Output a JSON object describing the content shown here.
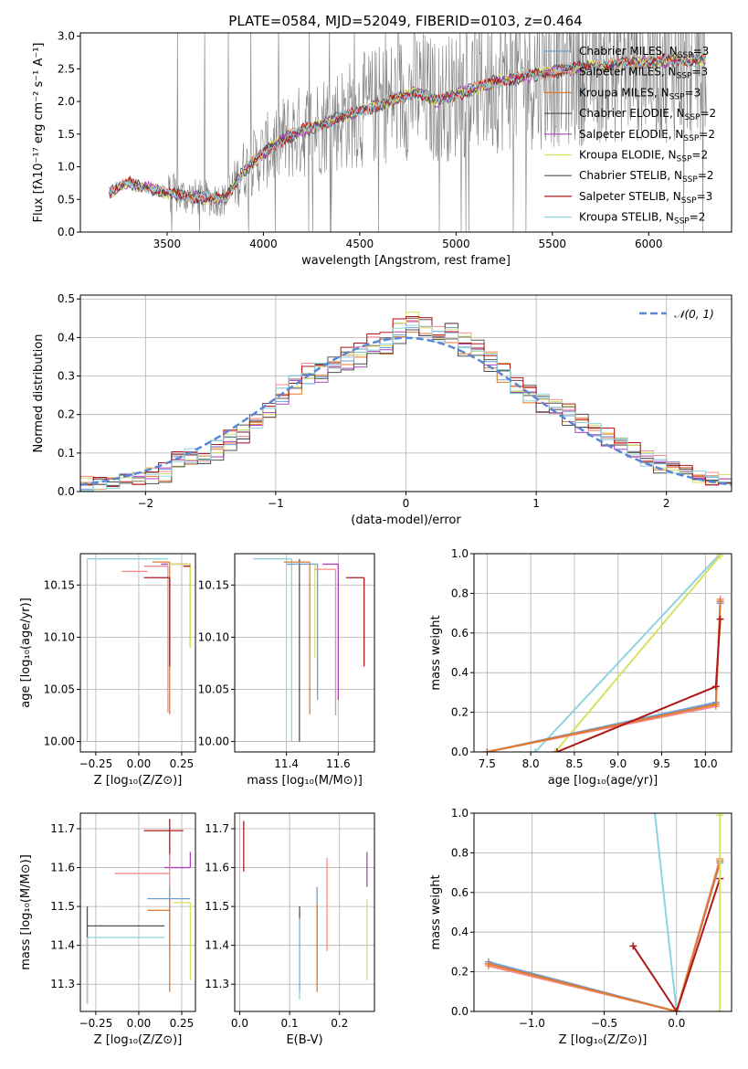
{
  "title": "PLATE=0584, MJD=52049, FIBERID=0103, z=0.464",
  "colors": {
    "chabrier_miles": "#6a9fd8",
    "salpeter_miles": "#f58a8a",
    "kroupa_miles": "#e07a2a",
    "chabrier_elodie": "#555555",
    "salpeter_elodie": "#b040c0",
    "kroupa_elodie": "#d8e060",
    "chabrier_stelib": "#505050",
    "salpeter_stelib": "#b01818",
    "kroupa_stelib": "#8fd3e0",
    "gaussian": "#5b86d6",
    "data": "#808080"
  },
  "legend": {
    "entries": [
      {
        "text": "Chabrier MILES, N",
        "sub": "SSP",
        "tail": "=3",
        "color_key": "chabrier_miles"
      },
      {
        "text": "Salpeter MILES, N",
        "sub": "SSP",
        "tail": "=3",
        "color_key": "salpeter_miles"
      },
      {
        "text": "Kroupa MILES, N",
        "sub": "SSP",
        "tail": "=3",
        "color_key": "kroupa_miles"
      },
      {
        "text": "Chabrier ELODIE, N",
        "sub": "SSP",
        "tail": "=2",
        "color_key": "chabrier_elodie"
      },
      {
        "text": "Salpeter ELODIE, N",
        "sub": "SSP",
        "tail": "=2",
        "color_key": "salpeter_elodie"
      },
      {
        "text": "Kroupa ELODIE, N",
        "sub": "SSP",
        "tail": "=2",
        "color_key": "kroupa_elodie"
      },
      {
        "text": "Chabrier STELIB, N",
        "sub": "SSP",
        "tail": "=2",
        "color_key": "chabrier_stelib"
      },
      {
        "text": "Salpeter STELIB, N",
        "sub": "SSP",
        "tail": "=3",
        "color_key": "salpeter_stelib"
      },
      {
        "text": "Kroupa STELIB, N",
        "sub": "SSP",
        "tail": "=2",
        "color_key": "kroupa_stelib"
      }
    ],
    "gaussian_label": "𝒩(0, 1)"
  },
  "chart_data": [
    {
      "id": "spectrum",
      "type": "line",
      "xlabel": "wavelength [Angstrom, rest frame]",
      "ylabel": "Flux [fλ10⁻¹⁷ erg cm⁻² s⁻¹ A⁻¹]",
      "xlim": [
        3050,
        6430
      ],
      "ylim": [
        0,
        3.05
      ],
      "xticks": [
        "3500",
        "4000",
        "4500",
        "5000",
        "5500",
        "6000"
      ],
      "xtick_values": [
        3500,
        4000,
        4500,
        5000,
        5500,
        6000
      ],
      "yticks": [
        "0.0",
        "0.5",
        "1.0",
        "1.5",
        "2.0",
        "2.5",
        "3.0"
      ],
      "ytick_values": [
        0,
        0.5,
        1.0,
        1.5,
        2.0,
        2.5,
        3.0
      ],
      "data_range": [
        3200,
        6300
      ],
      "model_anchor_x": [
        3200,
        3300,
        3400,
        3500,
        3600,
        3700,
        3800,
        3900,
        4000,
        4100,
        4200,
        4300,
        4400,
        4500,
        4600,
        4700,
        4800,
        4900,
        5000,
        5100,
        5200,
        5300,
        5400,
        5500,
        5600,
        5700,
        5800,
        5900,
        6000,
        6100,
        6200,
        6300
      ],
      "model_anchor_y": [
        0.6,
        0.75,
        0.68,
        0.6,
        0.55,
        0.52,
        0.5,
        0.95,
        1.2,
        1.42,
        1.55,
        1.65,
        1.75,
        1.85,
        1.95,
        2.05,
        2.15,
        2.0,
        2.1,
        2.2,
        2.3,
        2.35,
        2.4,
        2.45,
        2.5,
        2.55,
        2.55,
        2.6,
        2.6,
        2.62,
        2.63,
        2.65
      ]
    },
    {
      "id": "residuals",
      "type": "histogram",
      "xlabel": "(data-model)/error",
      "ylabel": "Normed distribution",
      "xlim": [
        -2.5,
        2.5
      ],
      "ylim": [
        0,
        0.51
      ],
      "xticks": [
        "−2",
        "−1",
        "0",
        "1",
        "2"
      ],
      "xtick_values": [
        -2,
        -1,
        0,
        1,
        2
      ],
      "yticks": [
        "0.0",
        "0.1",
        "0.2",
        "0.3",
        "0.4",
        "0.5"
      ],
      "ytick_values": [
        0,
        0.1,
        0.2,
        0.3,
        0.4,
        0.5
      ],
      "bin_centers": [
        -2.45,
        -2.35,
        -2.25,
        -2.15,
        -2.05,
        -1.95,
        -1.85,
        -1.75,
        -1.65,
        -1.55,
        -1.45,
        -1.35,
        -1.25,
        -1.15,
        -1.05,
        -0.95,
        -0.85,
        -0.75,
        -0.65,
        -0.55,
        -0.45,
        -0.35,
        -0.25,
        -0.15,
        -0.05,
        0.05,
        0.15,
        0.25,
        0.35,
        0.45,
        0.55,
        0.65,
        0.75,
        0.85,
        0.95,
        1.05,
        1.15,
        1.25,
        1.35,
        1.45,
        1.55,
        1.65,
        1.75,
        1.85,
        1.95,
        2.05,
        2.15,
        2.25,
        2.35,
        2.45
      ],
      "envelope": [
        0.02,
        0.02,
        0.02,
        0.03,
        0.03,
        0.04,
        0.05,
        0.08,
        0.09,
        0.09,
        0.11,
        0.13,
        0.15,
        0.18,
        0.21,
        0.25,
        0.28,
        0.3,
        0.31,
        0.32,
        0.34,
        0.35,
        0.38,
        0.37,
        0.42,
        0.44,
        0.42,
        0.4,
        0.41,
        0.38,
        0.37,
        0.34,
        0.31,
        0.27,
        0.25,
        0.23,
        0.22,
        0.2,
        0.18,
        0.16,
        0.14,
        0.13,
        0.1,
        0.08,
        0.07,
        0.06,
        0.05,
        0.04,
        0.03,
        0.03
      ],
      "series_offsets": [
        0.0,
        0.02,
        -0.01,
        0.015,
        -0.015,
        0.01,
        -0.02,
        0.025,
        0.005
      ]
    },
    {
      "id": "age_vs_Z",
      "type": "errorbar",
      "xlabel": "Z [log₁₀(Z/Z⊙)]",
      "ylabel": "age  [log₁₀(age/yr)]",
      "xlim": [
        -0.34,
        0.33
      ],
      "ylim": [
        9.99,
        10.18
      ],
      "xticks": [
        "−0.25",
        "0.00",
        "0.25"
      ],
      "xtick_values": [
        -0.25,
        0,
        0.25
      ],
      "yticks": [
        "10.00",
        "10.05",
        "10.10",
        "10.15"
      ],
      "ytick_values": [
        10.0,
        10.05,
        10.1,
        10.15
      ],
      "points": [
        {
          "x": -0.3,
          "y": 10.175,
          "xerr": [
            0.0,
            0.47
          ],
          "yerr": [
            0.175,
            0.0
          ],
          "color_key": "kroupa_stelib"
        },
        {
          "x": 0.17,
          "y": 10.168,
          "xerr": [
            0.14,
            0.0
          ],
          "yerr": [
            0.14,
            0.0
          ],
          "color_key": "salpeter_miles"
        },
        {
          "x": 0.3,
          "y": 10.17,
          "xerr": [
            0.17,
            0.0
          ],
          "yerr": [
            0.08,
            0.0
          ],
          "color_key": "salpeter_elodie"
        },
        {
          "x": 0.18,
          "y": 10.172,
          "xerr": [
            0.1,
            0.0
          ],
          "yerr": [
            0.146,
            0.0
          ],
          "color_key": "kroupa_miles"
        },
        {
          "x": 0.3,
          "y": 10.17,
          "xerr": [
            0.13,
            0.0
          ],
          "yerr": [
            0.08,
            0.0
          ],
          "color_key": "kroupa_elodie"
        },
        {
          "x": 0.18,
          "y": 10.157,
          "xerr": [
            0.15,
            0.0
          ],
          "yerr": [
            0.085,
            0.0
          ],
          "color_key": "salpeter_stelib"
        },
        {
          "x": 0.26,
          "y": 10.168,
          "xerr": [
            0.0,
            0.04
          ],
          "yerr": [
            0.0,
            0.0
          ],
          "color_key": "salpeter_stelib"
        },
        {
          "x": 0.05,
          "y": 10.163,
          "xerr": [
            0.15,
            0.0
          ],
          "yerr": [
            0.0,
            0.0
          ],
          "color_key": "salpeter_miles"
        }
      ]
    },
    {
      "id": "age_vs_mass",
      "type": "errorbar",
      "xlabel": "mass [log₁₀(M/M⊙)]",
      "ylabel": "",
      "xlim": [
        11.2,
        11.74
      ],
      "ylim": [
        9.99,
        10.18
      ],
      "xticks": [
        "11.4",
        "11.6"
      ],
      "xtick_values": [
        11.4,
        11.6
      ],
      "yticks": [
        "10.00",
        "10.05",
        "10.10",
        "10.15"
      ],
      "ytick_values": [
        10.0,
        10.05,
        10.1,
        10.15
      ],
      "points": [
        {
          "x": 11.42,
          "y": 10.175,
          "xerr": [
            0.15,
            0.0
          ],
          "yerr": [
            0.175,
            0.0
          ],
          "color_key": "kroupa_stelib"
        },
        {
          "x": 11.45,
          "y": 10.175,
          "xerr": [
            0.0,
            0.0
          ],
          "yerr": [
            0.175,
            0.0
          ],
          "color_key": "chabrier_stelib"
        },
        {
          "x": 11.49,
          "y": 10.172,
          "xerr": [
            0.1,
            0.0
          ],
          "yerr": [
            0.146,
            0.0
          ],
          "color_key": "kroupa_miles"
        },
        {
          "x": 11.52,
          "y": 10.17,
          "xerr": [
            0.12,
            0.0
          ],
          "yerr": [
            0.13,
            0.0
          ],
          "color_key": "chabrier_miles"
        },
        {
          "x": 11.51,
          "y": 10.17,
          "xerr": [
            0.0,
            0.0
          ],
          "yerr": [
            0.09,
            0.0
          ],
          "color_key": "kroupa_elodie"
        },
        {
          "x": 11.59,
          "y": 10.165,
          "xerr": [
            0.08,
            0.0
          ],
          "yerr": [
            0.14,
            0.0
          ],
          "color_key": "salpeter_miles"
        },
        {
          "x": 11.6,
          "y": 10.17,
          "xerr": [
            0.06,
            0.0
          ],
          "yerr": [
            0.13,
            0.0
          ],
          "color_key": "salpeter_elodie"
        },
        {
          "x": 11.7,
          "y": 10.157,
          "xerr": [
            0.07,
            0.0
          ],
          "yerr": [
            0.085,
            0.0
          ],
          "color_key": "salpeter_stelib"
        }
      ]
    },
    {
      "id": "weight_vs_age",
      "type": "line",
      "xlabel": "age  [log₁₀(age/yr)]",
      "ylabel": "mass weight",
      "xlim": [
        7.35,
        10.3
      ],
      "ylim": [
        0,
        1.0
      ],
      "xticks": [
        "7.5",
        "8.0",
        "8.5",
        "9.0",
        "9.5",
        "10.0"
      ],
      "xtick_values": [
        7.5,
        8.0,
        8.5,
        9.0,
        9.5,
        10.0
      ],
      "yticks": [
        "0.0",
        "0.2",
        "0.4",
        "0.6",
        "0.8",
        "1.0"
      ],
      "ytick_values": [
        0,
        0.2,
        0.4,
        0.6,
        0.8,
        1.0
      ],
      "series": [
        {
          "color_key": "kroupa_stelib",
          "x": [
            8.05,
            10.17
          ],
          "y": [
            0.0,
            1.0
          ]
        },
        {
          "color_key": "kroupa_elodie",
          "x": [
            8.28,
            10.17
          ],
          "y": [
            0.0,
            0.99
          ]
        },
        {
          "color_key": "chabrier_miles",
          "x": [
            7.5,
            10.12,
            10.17
          ],
          "y": [
            0.0,
            0.25,
            0.75
          ]
        },
        {
          "color_key": "salpeter_miles",
          "x": [
            7.5,
            10.12,
            10.17
          ],
          "y": [
            0.0,
            0.23,
            0.77
          ]
        },
        {
          "color_key": "kroupa_miles",
          "x": [
            7.5,
            10.12,
            10.17
          ],
          "y": [
            0.0,
            0.24,
            0.76
          ]
        },
        {
          "color_key": "salpeter_stelib",
          "x": [
            8.3,
            10.12,
            10.17
          ],
          "y": [
            0.0,
            0.33,
            0.67
          ]
        }
      ]
    },
    {
      "id": "mass_vs_Z",
      "type": "errorbar",
      "xlabel": "Z [log₁₀(Z/Z⊙)]",
      "ylabel": "mass [log₁₀(M/M⊙)]",
      "xlim": [
        -0.34,
        0.33
      ],
      "ylim": [
        11.23,
        11.74
      ],
      "xticks": [
        "−0.25",
        "0.00",
        "0.25"
      ],
      "xtick_values": [
        -0.25,
        0,
        0.25
      ],
      "yticks": [
        "11.3",
        "11.4",
        "11.5",
        "11.6",
        "11.7"
      ],
      "ytick_values": [
        11.3,
        11.4,
        11.5,
        11.6,
        11.7
      ],
      "points": [
        {
          "x": -0.3,
          "y": 11.45,
          "xerr": [
            0.0,
            0.45
          ],
          "yerr": [
            0.2,
            0.05
          ],
          "color_key": "chabrier_stelib"
        },
        {
          "x": -0.3,
          "y": 11.42,
          "xerr": [
            0.0,
            0.45
          ],
          "yerr": [
            0.17,
            0.0
          ],
          "color_key": "kroupa_stelib"
        },
        {
          "x": 0.18,
          "y": 11.695,
          "xerr": [
            0.15,
            0.08
          ],
          "yerr": [
            0.1,
            0.03
          ],
          "color_key": "salpeter_stelib"
        },
        {
          "x": 0.3,
          "y": 11.6,
          "xerr": [
            0.15,
            0.0
          ],
          "yerr": [
            0.0,
            0.04
          ],
          "color_key": "salpeter_elodie"
        },
        {
          "x": 0.18,
          "y": 11.585,
          "xerr": [
            0.32,
            0.0
          ],
          "yerr": [
            0.2,
            0.05
          ],
          "color_key": "salpeter_miles"
        },
        {
          "x": 0.18,
          "y": 11.52,
          "xerr": [
            0.13,
            0.12
          ],
          "yerr": [
            0.06,
            0.03
          ],
          "color_key": "chabrier_miles"
        },
        {
          "x": 0.18,
          "y": 11.49,
          "xerr": [
            0.13,
            0.0
          ],
          "yerr": [
            0.21,
            0.03
          ],
          "color_key": "kroupa_miles"
        },
        {
          "x": 0.3,
          "y": 11.51,
          "xerr": [
            0.1,
            0.0
          ],
          "yerr": [
            0.2,
            0.0
          ],
          "color_key": "kroupa_elodie"
        }
      ]
    },
    {
      "id": "mass_vs_ebv",
      "type": "errorbar",
      "xlabel": "E(B-V)",
      "ylabel": "",
      "xlim": [
        -0.01,
        0.27
      ],
      "ylim": [
        11.23,
        11.74
      ],
      "xticks": [
        "0.0",
        "0.1",
        "0.2"
      ],
      "xtick_values": [
        0.0,
        0.1,
        0.2
      ],
      "yticks": [
        "11.3",
        "11.4",
        "11.5",
        "11.6",
        "11.7"
      ],
      "ytick_values": [
        11.3,
        11.4,
        11.5,
        11.6,
        11.7
      ],
      "points": [
        {
          "x": 0.008,
          "y": 11.69,
          "xerr": [
            0,
            0
          ],
          "yerr": [
            0.1,
            0.03
          ],
          "color_key": "salpeter_stelib"
        },
        {
          "x": 0.12,
          "y": 11.45,
          "xerr": [
            0,
            0
          ],
          "yerr": [
            0.17,
            0.05
          ],
          "color_key": "chabrier_stelib"
        },
        {
          "x": 0.12,
          "y": 11.42,
          "xerr": [
            0,
            0
          ],
          "yerr": [
            0.16,
            0.05
          ],
          "color_key": "kroupa_stelib"
        },
        {
          "x": 0.155,
          "y": 11.5,
          "xerr": [
            0,
            0
          ],
          "yerr": [
            0.2,
            0.05
          ],
          "color_key": "chabrier_miles"
        },
        {
          "x": 0.155,
          "y": 11.48,
          "xerr": [
            0,
            0
          ],
          "yerr": [
            0.2,
            0.03
          ],
          "color_key": "kroupa_miles"
        },
        {
          "x": 0.175,
          "y": 11.585,
          "xerr": [
            0,
            0
          ],
          "yerr": [
            0.2,
            0.04
          ],
          "color_key": "salpeter_miles"
        },
        {
          "x": 0.255,
          "y": 11.6,
          "xerr": [
            0,
            0
          ],
          "yerr": [
            0.05,
            0.04
          ],
          "color_key": "salpeter_elodie"
        },
        {
          "x": 0.255,
          "y": 11.42,
          "xerr": [
            0,
            0
          ],
          "yerr": [
            0.11,
            0.1
          ],
          "color_key": "kroupa_elodie"
        }
      ]
    },
    {
      "id": "weight_vs_Z",
      "type": "line",
      "xlabel": "Z [log₁₀(Z/Z⊙)]",
      "ylabel": "mass weight",
      "xlim": [
        -1.4,
        0.38
      ],
      "ylim": [
        0,
        1.0
      ],
      "xticks": [
        "−1.0",
        "−0.5",
        "0.0"
      ],
      "xtick_values": [
        -1.0,
        -0.5,
        0.0
      ],
      "yticks": [
        "0.0",
        "0.2",
        "0.4",
        "0.6",
        "0.8",
        "1.0"
      ],
      "ytick_values": [
        0,
        0.2,
        0.4,
        0.6,
        0.8,
        1.0
      ],
      "series": [
        {
          "color_key": "kroupa_stelib",
          "x": [
            -0.15,
            0.0
          ],
          "y": [
            1.0,
            0.0
          ]
        },
        {
          "color_key": "chabrier_miles",
          "x": [
            -1.3,
            0.0,
            0.3
          ],
          "y": [
            0.25,
            0.0,
            0.75
          ]
        },
        {
          "color_key": "salpeter_miles",
          "x": [
            -1.3,
            0.0,
            0.3
          ],
          "y": [
            0.23,
            0.0,
            0.77
          ]
        },
        {
          "color_key": "kroupa_miles",
          "x": [
            -1.3,
            0.0,
            0.3
          ],
          "y": [
            0.24,
            0.0,
            0.76
          ]
        },
        {
          "color_key": "salpeter_stelib",
          "x": [
            -0.3,
            0.0,
            0.3
          ],
          "y": [
            0.33,
            0.0,
            0.67
          ]
        },
        {
          "color_key": "kroupa_elodie",
          "x": [
            0.3,
            0.3
          ],
          "y": [
            0.0,
            0.99
          ]
        }
      ]
    }
  ]
}
